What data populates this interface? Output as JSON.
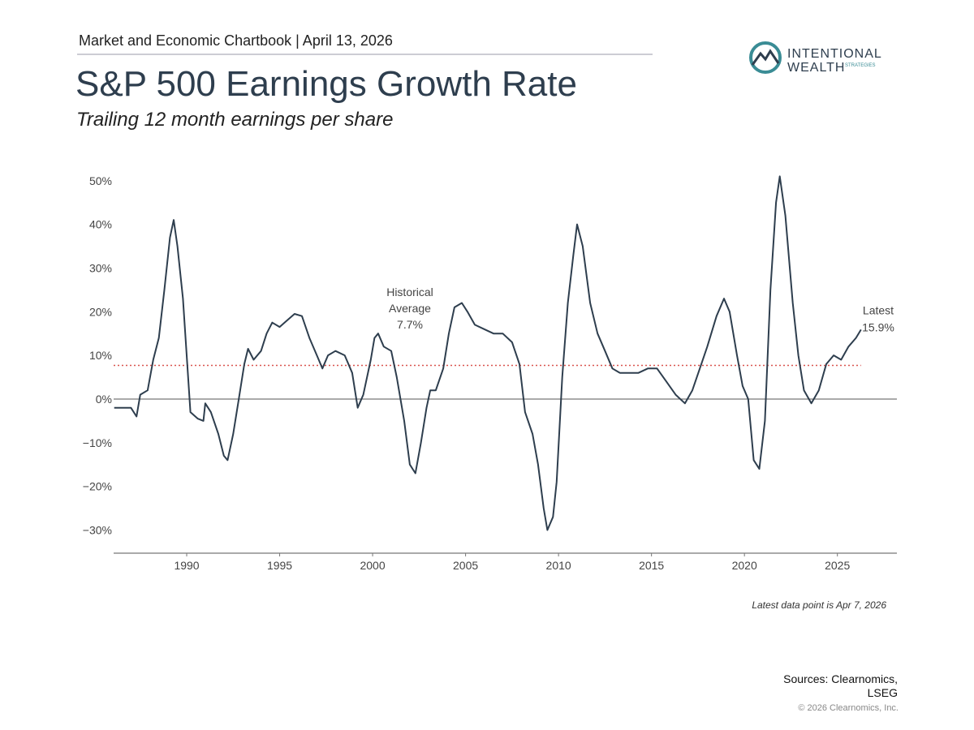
{
  "header": {
    "kicker": "Market and Economic Chartbook | April 13, 2026",
    "logo": {
      "line1": "INTENTIONAL",
      "line2": "WEALTH",
      "line3": "STRATEGIES"
    }
  },
  "chart_data": {
    "type": "line",
    "title": "S&P 500 Earnings Growth Rate",
    "subtitle": "Trailing 12 month earnings per share",
    "color": "#2e3e4e",
    "x": [
      1986.1,
      1987.0,
      1987.3,
      1987.5,
      1987.9,
      1988.2,
      1988.5,
      1988.8,
      1989.1,
      1989.3,
      1989.5,
      1989.8,
      1990.0,
      1990.2,
      1990.6,
      1990.9,
      1991.0,
      1991.3,
      1991.7,
      1992.0,
      1992.2,
      1992.5,
      1992.8,
      1993.1,
      1993.3,
      1993.6,
      1994.0,
      1994.3,
      1994.6,
      1995.0,
      1995.4,
      1995.8,
      1996.2,
      1996.6,
      1997.0,
      1997.3,
      1997.6,
      1998.0,
      1998.5,
      1998.9,
      1999.2,
      1999.5,
      1999.9,
      2000.1,
      2000.3,
      2000.6,
      2001.0,
      2001.3,
      2001.7,
      2002.0,
      2002.3,
      2002.6,
      2002.9,
      2003.1,
      2003.4,
      2003.8,
      2004.1,
      2004.4,
      2004.8,
      2005.1,
      2005.5,
      2006.0,
      2006.5,
      2007.0,
      2007.5,
      2007.9,
      2008.2,
      2008.6,
      2008.9,
      2009.2,
      2009.4,
      2009.7,
      2009.9,
      2010.2,
      2010.5,
      2010.8,
      2011.0,
      2011.3,
      2011.7,
      2012.1,
      2012.5,
      2012.9,
      2013.3,
      2013.8,
      2014.3,
      2014.8,
      2015.3,
      2015.8,
      2016.3,
      2016.8,
      2017.2,
      2017.6,
      2018.0,
      2018.5,
      2018.9,
      2019.2,
      2019.6,
      2019.9,
      2020.2,
      2020.5,
      2020.8,
      2021.1,
      2021.4,
      2021.7,
      2021.9,
      2022.2,
      2022.6,
      2022.9,
      2023.2,
      2023.6,
      2024.0,
      2024.4,
      2024.8,
      2025.2,
      2025.6,
      2026.0,
      2026.27
    ],
    "values": [
      -2,
      -2,
      -4,
      1,
      2,
      9,
      14,
      25,
      37,
      41,
      35,
      23,
      10,
      -3,
      -4.5,
      -5,
      -1,
      -3,
      -8,
      -13,
      -14,
      -8,
      0,
      8,
      11.5,
      9,
      11,
      15,
      17.5,
      16.5,
      18,
      19.5,
      19,
      14,
      10,
      7,
      10,
      11,
      10,
      6,
      -2,
      1,
      9,
      14,
      15,
      12,
      11,
      5,
      -5,
      -15,
      -17,
      -10,
      -2,
      2,
      2,
      7,
      15,
      21,
      22,
      20,
      17,
      16,
      15,
      15,
      13,
      8,
      -3,
      -8,
      -15,
      -25,
      -30,
      -27,
      -19,
      5,
      22,
      33,
      40,
      35,
      22,
      15,
      11,
      7,
      6,
      6,
      6,
      7,
      7,
      4,
      1,
      -1,
      2,
      7,
      12,
      19,
      23,
      20,
      10,
      3,
      0,
      -14,
      -16,
      -5,
      25,
      45,
      51,
      42,
      22,
      10,
      2,
      -1,
      2,
      8,
      10,
      9,
      12,
      14,
      15.9
    ],
    "xlim": [
      1986.07,
      2028.2
    ],
    "xticks": [
      1990,
      1995,
      2000,
      2005,
      2010,
      2015,
      2020,
      2025
    ],
    "ylim": [
      -35.3,
      52
    ],
    "yticks": [
      {
        "value": 50,
        "label": "50%"
      },
      {
        "value": 40,
        "label": "40%"
      },
      {
        "value": 30,
        "label": "30%"
      },
      {
        "value": 20,
        "label": "20%"
      },
      {
        "value": 10,
        "label": "10%"
      },
      {
        "value": 0,
        "label": "0%"
      },
      {
        "value": -10,
        "label": "−10%"
      },
      {
        "value": -20,
        "label": "−20%"
      },
      {
        "value": -30,
        "label": "−30%"
      }
    ],
    "average": {
      "value": 7.7,
      "color": "#d9534f",
      "label": [
        "Historical",
        "Average",
        "7.7%"
      ]
    },
    "latest": {
      "value": 15.9,
      "label": [
        "Latest",
        "15.9%"
      ]
    },
    "note": "Latest data point is Apr 7, 2026"
  },
  "footer": {
    "sources": [
      "Sources: Clearnomics,",
      "LSEG"
    ],
    "copyright": "© 2026 Clearnomics, Inc."
  }
}
